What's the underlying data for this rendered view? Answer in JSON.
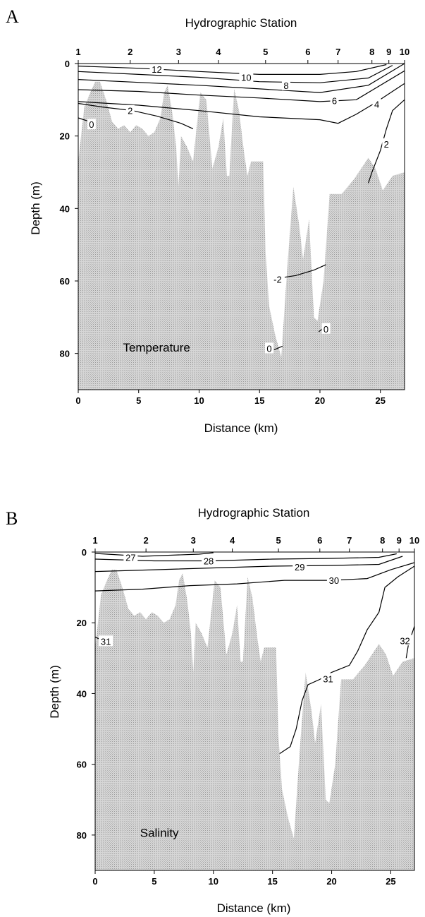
{
  "chart_data": [
    {
      "type": "contour",
      "panel_letter": "A",
      "top_axis_title": "Hydrographic Station",
      "xlabel": "Distance (km)",
      "ylabel": "Depth (m)",
      "panel_label": "Temperature",
      "xlim": [
        0,
        27
      ],
      "ylim": [
        0,
        90
      ],
      "y_inverted": true,
      "x_ticks": [
        0,
        5,
        10,
        15,
        20,
        25
      ],
      "y_ticks": [
        0,
        20,
        40,
        60,
        80
      ],
      "stations": [
        {
          "label": "1",
          "distance": 0
        },
        {
          "label": "2",
          "distance": 4.3
        },
        {
          "label": "3",
          "distance": 8.3
        },
        {
          "label": "4",
          "distance": 11.6
        },
        {
          "label": "5",
          "distance": 15.5
        },
        {
          "label": "6",
          "distance": 19.0
        },
        {
          "label": "7",
          "distance": 21.5
        },
        {
          "label": "8",
          "distance": 24.3
        },
        {
          "label": "9",
          "distance": 25.7
        },
        {
          "label": "10",
          "distance": 27
        }
      ],
      "bottom_profile": [
        [
          0,
          27
        ],
        [
          0.5,
          12
        ],
        [
          1,
          8
        ],
        [
          1.4,
          5
        ],
        [
          1.8,
          5
        ],
        [
          2.3,
          10
        ],
        [
          2.8,
          16
        ],
        [
          3.3,
          18
        ],
        [
          3.8,
          17
        ],
        [
          4.3,
          19
        ],
        [
          4.8,
          17
        ],
        [
          5.3,
          18
        ],
        [
          5.8,
          20
        ],
        [
          6.3,
          19
        ],
        [
          6.8,
          15
        ],
        [
          7.1,
          8
        ],
        [
          7.4,
          6
        ],
        [
          7.8,
          14
        ],
        [
          8.1,
          23
        ],
        [
          8.3,
          34
        ],
        [
          8.5,
          20
        ],
        [
          9,
          23
        ],
        [
          9.5,
          27
        ],
        [
          10.1,
          8
        ],
        [
          10.6,
          10
        ],
        [
          11.1,
          29
        ],
        [
          11.6,
          23
        ],
        [
          12,
          15
        ],
        [
          12.3,
          31
        ],
        [
          12.5,
          31
        ],
        [
          12.9,
          7
        ],
        [
          13.3,
          13
        ],
        [
          13.7,
          24
        ],
        [
          14,
          31
        ],
        [
          14.3,
          27
        ],
        [
          15.3,
          27
        ],
        [
          15.5,
          52
        ],
        [
          15.8,
          67
        ],
        [
          16.3,
          75
        ],
        [
          16.8,
          81
        ],
        [
          17.3,
          56
        ],
        [
          17.8,
          34
        ],
        [
          18.3,
          45
        ],
        [
          18.6,
          54
        ],
        [
          19.1,
          43
        ],
        [
          19.5,
          70
        ],
        [
          19.8,
          71
        ],
        [
          20.3,
          60
        ],
        [
          20.8,
          36
        ],
        [
          21.8,
          36
        ],
        [
          22.8,
          32
        ],
        [
          24,
          26
        ],
        [
          24.6,
          29
        ],
        [
          25.2,
          35
        ],
        [
          26,
          31
        ],
        [
          27,
          30
        ]
      ],
      "isolines": [
        {
          "label": "12",
          "points": [
            [
              0,
              0.7
            ],
            [
              5,
              1.3
            ],
            [
              10,
              2.2
            ],
            [
              15,
              3
            ],
            [
              20,
              3
            ],
            [
              23,
              2.2
            ],
            [
              25.5,
              0.3
            ]
          ],
          "label_at": [
            6.5,
            1.6
          ]
        },
        {
          "label": "10",
          "points": [
            [
              0,
              2.2
            ],
            [
              5,
              3
            ],
            [
              10,
              3.8
            ],
            [
              15,
              5
            ],
            [
              20,
              5.3
            ],
            [
              24,
              4
            ],
            [
              26,
              0.5
            ]
          ],
          "label_at": [
            13.9,
            3.8
          ]
        },
        {
          "label": "8",
          "points": [
            [
              0,
              4.4
            ],
            [
              5,
              5.2
            ],
            [
              10,
              6
            ],
            [
              15,
              7
            ],
            [
              20,
              8
            ],
            [
              24,
              6
            ],
            [
              27,
              0
            ]
          ],
          "label_at": [
            17.2,
            6.0
          ]
        },
        {
          "label": "6",
          "points": [
            [
              0,
              7.2
            ],
            [
              5,
              7.7
            ],
            [
              10,
              8.7
            ],
            [
              15,
              9.5
            ],
            [
              20,
              10.5
            ],
            [
              23,
              10
            ],
            [
              27,
              2
            ]
          ],
          "label_at": [
            21.2,
            10.2
          ]
        },
        {
          "label": "4",
          "points": [
            [
              0,
              10.5
            ],
            [
              5,
              11.5
            ],
            [
              10,
              13
            ],
            [
              15,
              14.7
            ],
            [
              20,
              15.5
            ],
            [
              21.5,
              16.5
            ],
            [
              23,
              14
            ],
            [
              24.5,
              11
            ],
            [
              27,
              5.5
            ]
          ],
          "label_at": [
            24.7,
            11.2
          ]
        },
        {
          "label": "2",
          "points": [
            [
              0,
              11
            ],
            [
              2,
              12
            ],
            [
              4.5,
              13
            ],
            [
              6.5,
              14.5
            ],
            [
              8.5,
              16.5
            ],
            [
              9.5,
              18
            ]
          ],
          "label_at": [
            4.3,
            13.0
          ]
        },
        {
          "label": "2",
          "points": [
            [
              27,
              10
            ],
            [
              26,
              13
            ],
            [
              25.5,
              18
            ],
            [
              25,
              24
            ],
            [
              24.3,
              30
            ],
            [
              24,
              33
            ]
          ],
          "label_at": [
            25.5,
            22.2
          ]
        },
        {
          "label": "-2",
          "points": [
            [
              16.2,
              60
            ],
            [
              17,
              59
            ],
            [
              18,
              58.5
            ],
            [
              19.5,
              57
            ],
            [
              20.5,
              55.5
            ]
          ],
          "label_at": [
            16.5,
            59.5
          ]
        },
        {
          "label": "0",
          "points": [
            [
              0,
              15
            ],
            [
              0.9,
              16
            ]
          ],
          "label_at": [
            1.1,
            16.8
          ]
        },
        {
          "label": "0",
          "points": [
            [
              16.2,
              79
            ],
            [
              16.9,
              78
            ]
          ],
          "label_at": [
            15.8,
            78.6
          ]
        },
        {
          "label": "0",
          "points": [
            [
              19.9,
              74
            ],
            [
              20.3,
              73
            ]
          ],
          "label_at": [
            20.5,
            73.2
          ]
        }
      ]
    },
    {
      "type": "contour",
      "panel_letter": "B",
      "top_axis_title": "Hydrographic Station",
      "xlabel": "Distance (km)",
      "ylabel": "Depth (m)",
      "panel_label": "Salinity",
      "xlim": [
        0,
        27
      ],
      "ylim": [
        0,
        90
      ],
      "y_inverted": true,
      "x_ticks": [
        0,
        5,
        10,
        15,
        20,
        25
      ],
      "y_ticks": [
        0,
        20,
        40,
        60,
        80
      ],
      "stations": [
        {
          "label": "1",
          "distance": 0
        },
        {
          "label": "2",
          "distance": 4.3
        },
        {
          "label": "3",
          "distance": 8.3
        },
        {
          "label": "4",
          "distance": 11.6
        },
        {
          "label": "5",
          "distance": 15.5
        },
        {
          "label": "6",
          "distance": 19.0
        },
        {
          "label": "7",
          "distance": 21.5
        },
        {
          "label": "8",
          "distance": 24.3
        },
        {
          "label": "9",
          "distance": 25.7
        },
        {
          "label": "10",
          "distance": 27
        }
      ],
      "bottom_profile": [
        [
          0,
          27
        ],
        [
          0.5,
          12
        ],
        [
          1,
          8
        ],
        [
          1.4,
          5
        ],
        [
          1.8,
          5
        ],
        [
          2.3,
          10
        ],
        [
          2.8,
          16
        ],
        [
          3.3,
          18
        ],
        [
          3.8,
          17
        ],
        [
          4.3,
          19
        ],
        [
          4.8,
          17
        ],
        [
          5.3,
          18
        ],
        [
          5.8,
          20
        ],
        [
          6.3,
          19
        ],
        [
          6.8,
          15
        ],
        [
          7.1,
          8
        ],
        [
          7.4,
          6
        ],
        [
          7.8,
          14
        ],
        [
          8.1,
          23
        ],
        [
          8.3,
          34
        ],
        [
          8.5,
          20
        ],
        [
          9,
          23
        ],
        [
          9.5,
          27
        ],
        [
          10.1,
          8
        ],
        [
          10.6,
          10
        ],
        [
          11.1,
          29
        ],
        [
          11.6,
          23
        ],
        [
          12,
          15
        ],
        [
          12.3,
          31
        ],
        [
          12.5,
          31
        ],
        [
          12.9,
          7
        ],
        [
          13.3,
          13
        ],
        [
          13.7,
          24
        ],
        [
          14,
          31
        ],
        [
          14.3,
          27
        ],
        [
          15.3,
          27
        ],
        [
          15.5,
          52
        ],
        [
          15.8,
          67
        ],
        [
          16.3,
          75
        ],
        [
          16.8,
          81
        ],
        [
          17.3,
          56
        ],
        [
          17.8,
          34
        ],
        [
          18.3,
          45
        ],
        [
          18.6,
          54
        ],
        [
          19.1,
          43
        ],
        [
          19.5,
          70
        ],
        [
          19.8,
          71
        ],
        [
          20.3,
          60
        ],
        [
          20.8,
          36
        ],
        [
          21.8,
          36
        ],
        [
          22.8,
          32
        ],
        [
          24,
          26
        ],
        [
          24.6,
          29
        ],
        [
          25.2,
          35
        ],
        [
          26,
          31
        ],
        [
          27,
          30
        ]
      ],
      "isolines": [
        {
          "label": "27",
          "points": [
            [
              0,
              0.4
            ],
            [
              4,
              1.2
            ],
            [
              8.8,
              0.6
            ],
            [
              10,
              0.2
            ]
          ],
          "label_at": [
            3.0,
            1.5
          ]
        },
        {
          "label": "28",
          "points": [
            [
              0,
              2
            ],
            [
              5,
              2.5
            ],
            [
              10,
              2.5
            ],
            [
              15,
              2
            ],
            [
              20,
              1.8
            ],
            [
              24,
              1.5
            ],
            [
              25.5,
              0.5
            ]
          ],
          "label_at": [
            9.6,
            2.5
          ]
        },
        {
          "label": "29",
          "points": [
            [
              0,
              5.5
            ],
            [
              5,
              5
            ],
            [
              10,
              4.5
            ],
            [
              15,
              4
            ],
            [
              20,
              3.8
            ],
            [
              24,
              3.5
            ],
            [
              26,
              1.2
            ]
          ],
          "label_at": [
            17.3,
            4.2
          ]
        },
        {
          "label": "30",
          "points": [
            [
              0,
              11
            ],
            [
              4,
              10.5
            ],
            [
              8,
              9.5
            ],
            [
              12,
              9
            ],
            [
              16,
              8
            ],
            [
              20,
              8
            ],
            [
              23,
              7.5
            ],
            [
              25,
              5
            ],
            [
              27,
              3
            ]
          ],
          "label_at": [
            20.2,
            8.0
          ]
        },
        {
          "label": "31",
          "points": [
            [
              15.6,
              57
            ],
            [
              16.5,
              55
            ],
            [
              17,
              50
            ],
            [
              17.5,
              42
            ],
            [
              18,
              37.5
            ],
            [
              19,
              36
            ],
            [
              20,
              34
            ],
            [
              21.5,
              32
            ],
            [
              22.2,
              28
            ],
            [
              23,
              22
            ],
            [
              24,
              17
            ],
            [
              24.5,
              10
            ],
            [
              25.6,
              7
            ],
            [
              27,
              4
            ]
          ],
          "label_at": [
            19.7,
            35.8
          ]
        },
        {
          "label": "31",
          "points": [
            [
              0,
              24
            ],
            [
              0.3,
              24.5
            ]
          ],
          "label_at": [
            0.9,
            25.2
          ]
        },
        {
          "label": "32",
          "points": [
            [
              27,
              21
            ],
            [
              26.5,
              26
            ],
            [
              26.3,
              30
            ]
          ],
          "label_at": [
            26.2,
            25.0
          ]
        }
      ]
    }
  ]
}
